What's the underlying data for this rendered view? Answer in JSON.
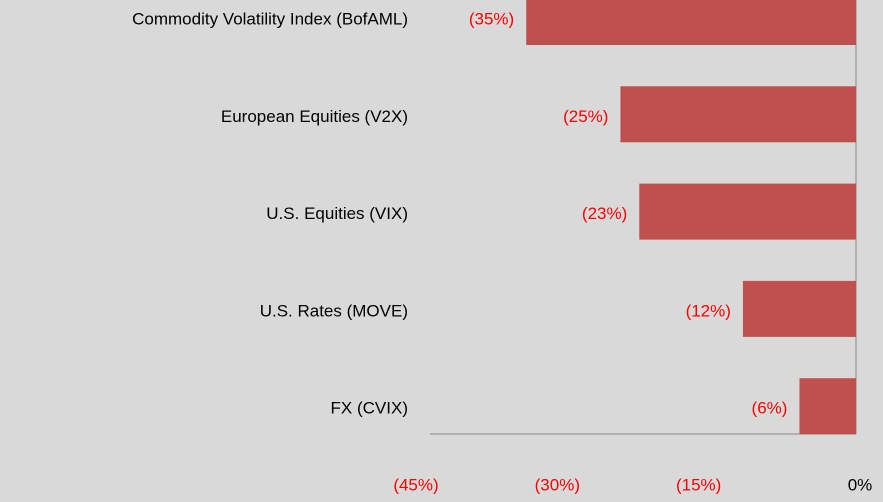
{
  "chart_data": {
    "type": "bar",
    "orientation": "horizontal",
    "categories": [
      "Commodity Volatility Index (BofAML)",
      "European Equities (V2X)",
      "U.S. Equities (VIX)",
      "U.S. Rates (MOVE)",
      "FX (CVIX)"
    ],
    "values": [
      -35,
      -25,
      -23,
      -12,
      -6
    ],
    "value_labels": [
      "(35%)",
      "(25%)",
      "(23%)",
      "(12%)",
      "(6%)"
    ],
    "color": "#c0504d",
    "value_label_color": "#ff0000",
    "xlim": [
      -45,
      0
    ],
    "xticks": [
      {
        "value": -45,
        "label": "(45%)"
      },
      {
        "value": -30,
        "label": "(30%)"
      },
      {
        "value": -15,
        "label": "(15%)"
      },
      {
        "value": 0,
        "label": "0%"
      }
    ],
    "xtick_colors": [
      "#ff0000",
      "#ff0000",
      "#ff0000",
      "#000000"
    ],
    "grid": false
  }
}
